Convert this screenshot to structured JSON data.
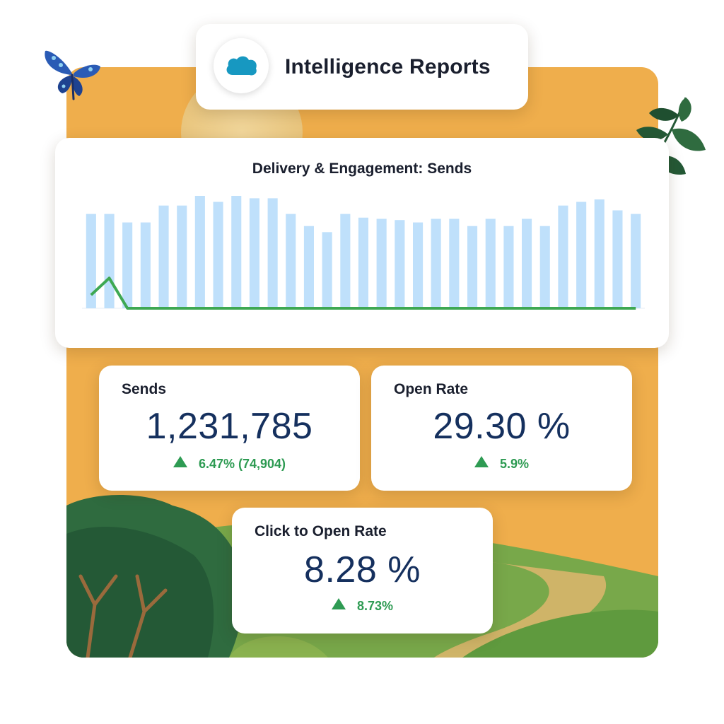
{
  "header": {
    "title": "Intelligence Reports",
    "logo_icon": "salesforce-cloud-icon"
  },
  "chart_data": {
    "type": "bar",
    "title": "Delivery & Engagement: Sends",
    "xlabel": "",
    "ylabel": "",
    "series": [
      {
        "type": "bar",
        "values": [
          78,
          78,
          71,
          71,
          85,
          85,
          93,
          88,
          93,
          91,
          91,
          78,
          68,
          63,
          78,
          75,
          74,
          73,
          71,
          74,
          74,
          68,
          74,
          68,
          74,
          68,
          85,
          88,
          90,
          81,
          78
        ]
      },
      {
        "type": "line",
        "values": [
          11,
          25,
          0,
          0,
          0,
          0,
          0,
          0,
          0,
          0,
          0,
          0,
          0,
          0,
          0,
          0,
          0,
          0,
          0,
          0,
          0,
          0,
          0,
          0,
          0,
          0,
          0,
          0,
          0,
          0,
          0
        ]
      }
    ],
    "ylim": [
      0,
      100
    ],
    "grid": false,
    "colors": {
      "bars": "#bfe0fb",
      "line": "#3ea852"
    }
  },
  "metrics": {
    "sends": {
      "title": "Sends",
      "value": "1,231,785",
      "delta": "6.47% (74,904)",
      "trend_icon": "triangle-up-icon"
    },
    "open_rate": {
      "title": "Open Rate",
      "value": "29.30 %",
      "delta": "5.9%",
      "trend_icon": "triangle-up-icon"
    },
    "click_to_open": {
      "title": "Click to Open Rate",
      "value": "8.28 %",
      "delta": "8.73%",
      "trend_icon": "triangle-up-icon"
    }
  },
  "colors": {
    "background": "#efae4c",
    "value_text": "#15305e",
    "positive": "#2e9b53"
  },
  "decorations": [
    "butterfly-icon",
    "leaf-branch-icon",
    "sun-icon",
    "tree-icon",
    "hills"
  ]
}
